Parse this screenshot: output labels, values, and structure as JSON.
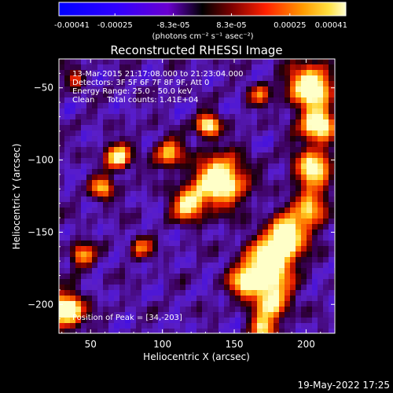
{
  "colorbar": {
    "tick_labels": [
      "-0.00041",
      "-0.00025",
      "-8.3e-05",
      "8.3e-05",
      "0.00025",
      "0.00041"
    ],
    "tick_values": [
      -0.00041,
      -0.00025,
      -8.3e-05,
      8.3e-05,
      0.00025,
      0.00041
    ],
    "range": [
      -0.00041,
      0.00041
    ],
    "units_label": "(photons cm⁻² s⁻¹ asec⁻²)"
  },
  "chart_data": {
    "type": "heatmap",
    "title": "Reconstructed RHESSI Image",
    "xlabel": "Heliocentric X (arcsec)",
    "ylabel": "Heliocentric Y (arcsec)",
    "xlim": [
      28,
      220
    ],
    "ylim": [
      -220,
      -30
    ],
    "x_ticks": [
      50,
      100,
      150,
      200
    ],
    "y_ticks": [
      -50,
      -100,
      -150,
      -200
    ],
    "annotations": {
      "time_range": "13-Mar-2015 21:17:08.000 to 21:23:04.000",
      "detectors": "Detectors: 3F 5F 6F 7F 8F 9F, Att 0",
      "energy_range": "Energy Range: 25.0 - 50.0 keV",
      "algorithm": "Clean     Total counts: 1.41E+04",
      "peak_position": "Position of Peak = [34,-203]"
    },
    "peak": [
      34,
      -203
    ]
  },
  "footer": {
    "timestamp": "19-May-2022 17:25"
  },
  "colors": {
    "background": "#000000",
    "foreground": "#ffffff"
  }
}
